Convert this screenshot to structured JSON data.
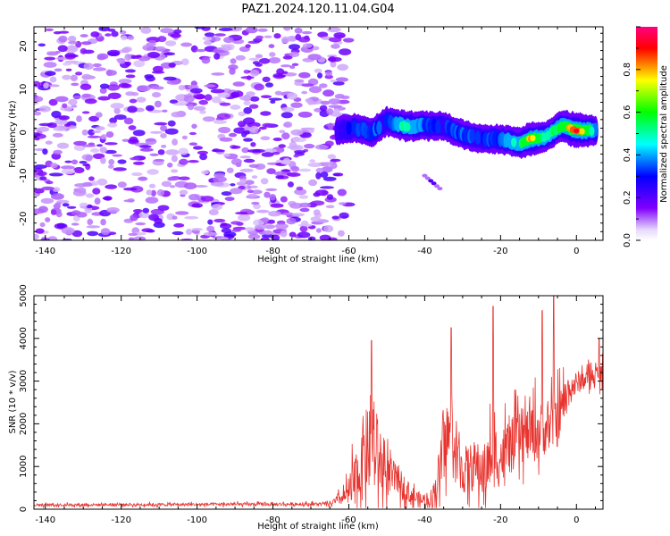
{
  "figure": {
    "title": "PAZ1.2024.120.11.04.G04"
  },
  "chart_data": [
    {
      "type": "heatmap",
      "title": "PAZ1.2024.120.11.04.G04",
      "xlabel": "Height of straight line (km)",
      "ylabel": "Frequency (Hz)",
      "xlim": [
        -143,
        7
      ],
      "ylim": [
        -25,
        24.5
      ],
      "xticks": [
        "-140",
        "-120",
        "-100",
        "-80",
        "-60",
        "-40",
        "-20",
        "0"
      ],
      "yticks": [
        "20",
        "10",
        "0",
        "-10",
        "-20"
      ],
      "colorbar": {
        "label": "Normalized spectral amplitude",
        "ticks": [
          "0.0",
          "0.2",
          "0.4",
          "0.6",
          "0.8"
        ],
        "range": [
          0,
          1
        ],
        "colormap": "rainbow (violet -> blue -> cyan -> green -> yellow -> red -> magenta)"
      },
      "noise_region": {
        "x": [
          -143,
          -62
        ],
        "y": [
          -25,
          24.5
        ],
        "amplitude": [
          0.1,
          0.3
        ]
      },
      "signal_trace": [
        {
          "x": -63,
          "y": 0.5,
          "amp": 0.25
        },
        {
          "x": -58,
          "y": 1,
          "amp": 0.3
        },
        {
          "x": -54,
          "y": 0,
          "amp": 0.35
        },
        {
          "x": -50,
          "y": 2.5,
          "amp": 0.3
        },
        {
          "x": -45,
          "y": 1.5,
          "amp": 0.5
        },
        {
          "x": -40,
          "y": 1.5,
          "amp": 0.35
        },
        {
          "x": -35,
          "y": 1.5,
          "amp": 0.3
        },
        {
          "x": -30,
          "y": -0.5,
          "amp": 0.35
        },
        {
          "x": -25,
          "y": -1.5,
          "amp": 0.3
        },
        {
          "x": -20,
          "y": -1.5,
          "amp": 0.35
        },
        {
          "x": -15,
          "y": -2.5,
          "amp": 0.5
        },
        {
          "x": -12,
          "y": -1.5,
          "amp": 0.8
        },
        {
          "x": -8,
          "y": -1,
          "amp": 0.45
        },
        {
          "x": -4,
          "y": 1.5,
          "amp": 0.6
        },
        {
          "x": 0,
          "y": 0.5,
          "amp": 0.95
        },
        {
          "x": 5,
          "y": 0.5,
          "amp": 0.4
        }
      ],
      "secondary_feature": {
        "x": [
          -40,
          -36
        ],
        "y": [
          -13,
          -10
        ],
        "amplitude": 0.2
      }
    },
    {
      "type": "line",
      "xlabel": "Height of straight line (km)",
      "ylabel": "SNR (10 * v/v)",
      "xlim": [
        -143,
        7
      ],
      "ylim": [
        0,
        5000
      ],
      "xticks": [
        "-140",
        "-120",
        "-100",
        "-80",
        "-60",
        "-40",
        "-20",
        "0"
      ],
      "yticks": [
        "0",
        "1000",
        "2000",
        "3000",
        "4000",
        "5000"
      ],
      "color": "#e8332e",
      "envelope": {
        "x": [
          -143,
          -65,
          -61,
          -58,
          -56,
          -54,
          -52,
          -50,
          -47,
          -44,
          -41,
          -38,
          -36,
          -34,
          -32,
          -30,
          -27,
          -24,
          -22,
          -20,
          -17,
          -14,
          -11,
          -8,
          -5,
          -2,
          1,
          4,
          7
        ],
        "base": [
          100,
          120,
          300,
          600,
          1300,
          1400,
          1200,
          800,
          700,
          350,
          200,
          250,
          900,
          1800,
          1300,
          900,
          1000,
          900,
          1300,
          1200,
          1500,
          1700,
          1800,
          1900,
          2100,
          2800,
          3000,
          3100,
          3200
        ],
        "noise": [
          60,
          80,
          400,
          1500,
          2000,
          1900,
          1800,
          1000,
          700,
          500,
          350,
          500,
          1200,
          1500,
          1400,
          1100,
          1200,
          1300,
          1600,
          1400,
          1300,
          1200,
          1400,
          1200,
          1300,
          800,
          500,
          450,
          500
        ]
      },
      "peaks": [
        {
          "x": -54,
          "y": 3950
        },
        {
          "x": -33,
          "y": 4250
        },
        {
          "x": -22,
          "y": 4750
        },
        {
          "x": -9,
          "y": 4650
        },
        {
          "x": -6,
          "y": 5000
        },
        {
          "x": 6,
          "y": 4000
        }
      ]
    }
  ]
}
